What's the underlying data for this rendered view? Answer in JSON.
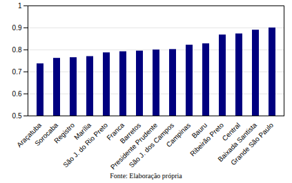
{
  "chart_data": {
    "type": "bar",
    "caption": "Fonte: Elaboração própria",
    "categories": [
      "Araçatuba",
      "Sorocaba",
      "Registro",
      "Marília",
      "São J. do Rio Preto",
      "Franca",
      "Barretos",
      "Presidente Prudente",
      "São J. dos Campos",
      "Campinas",
      "Bauru",
      "Ribeirão Preto",
      "Central",
      "Baixada Santista",
      "Grande São Paulo"
    ],
    "values": [
      0.737,
      0.762,
      0.765,
      0.77,
      0.787,
      0.792,
      0.795,
      0.8,
      0.802,
      0.822,
      0.828,
      0.868,
      0.873,
      0.89,
      0.9
    ],
    "color": "#00007f",
    "ylim": [
      0.5,
      1
    ],
    "yticks": [
      0.5,
      0.6,
      0.7,
      0.8,
      0.9,
      1
    ],
    "grid": true
  }
}
